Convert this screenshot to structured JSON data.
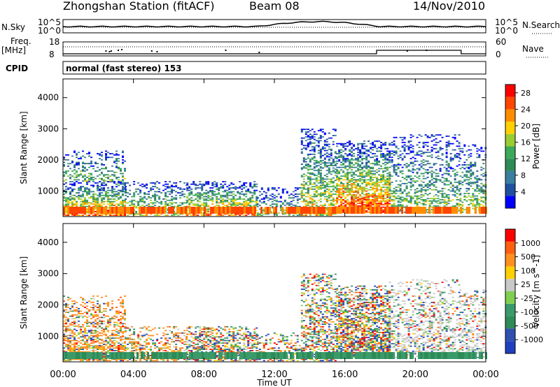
{
  "header": {
    "station": "Zhongshan Station (fitACF)",
    "beam": "Beam 08",
    "date": "14/Nov/2010"
  },
  "panels": {
    "noise": {
      "left_label": "N.Sky",
      "right_label": "N.Search",
      "ticks_left": [
        "10^5",
        "10^0"
      ],
      "ticks_right": [
        "10^5",
        "10^0"
      ]
    },
    "freq": {
      "left_label_top": "Freq.",
      "left_label_bottom": "[MHz]",
      "right_label": "Nave",
      "ticks_left": [
        "18",
        "8"
      ],
      "ticks_right": [
        "60",
        "0"
      ]
    },
    "cpid": {
      "label": "CPID",
      "text": "normal (fast stereo) 153"
    }
  },
  "chart_data": [
    {
      "type": "heatmap",
      "title": "",
      "xlabel": "Time UT",
      "ylabel": "Slant Range [km]",
      "x_ticks": [
        "00:00",
        "04:00",
        "08:00",
        "12:00",
        "16:00",
        "20:00",
        "00:00"
      ],
      "xlim_hours": [
        0,
        24
      ],
      "ylim_km": [
        180,
        4600
      ],
      "y_ticks": [
        1000,
        2000,
        3000,
        4000
      ],
      "colorbar": {
        "label": "Power [dB]",
        "ticks": [
          4,
          8,
          12,
          16,
          20,
          24,
          28
        ],
        "range": [
          0,
          30
        ],
        "colors": [
          "#0000ff",
          "#2050a0",
          "#3a7fa0",
          "#2e8b57",
          "#3caa5a",
          "#9acd32",
          "#ffd000",
          "#ff8c00",
          "#ff4500",
          "#ff0000"
        ]
      },
      "echo_regions": [
        {
          "t0": 0.0,
          "t1": 3.5,
          "r0": 200,
          "r1": 1300,
          "level": 0.8
        },
        {
          "t0": 0.0,
          "t1": 3.5,
          "r0": 1300,
          "r1": 2300,
          "level": 0.4
        },
        {
          "t0": 3.5,
          "t1": 7.0,
          "r0": 200,
          "r1": 1300,
          "level": 0.55
        },
        {
          "t0": 7.0,
          "t1": 11.0,
          "r0": 200,
          "r1": 1300,
          "level": 0.75
        },
        {
          "t0": 11.0,
          "t1": 13.5,
          "r0": 200,
          "r1": 1100,
          "level": 0.4
        },
        {
          "t0": 13.5,
          "t1": 15.5,
          "r0": 200,
          "r1": 3000,
          "level": 0.6
        },
        {
          "t0": 15.5,
          "t1": 18.5,
          "r0": 300,
          "r1": 2600,
          "level": 0.85
        },
        {
          "t0": 18.5,
          "t1": 22.5,
          "r0": 300,
          "r1": 2800,
          "level": 0.45
        },
        {
          "t0": 22.5,
          "t1": 24.0,
          "r0": 300,
          "r1": 2500,
          "level": 0.5
        }
      ]
    },
    {
      "type": "heatmap",
      "title": "",
      "xlabel": "Time UT",
      "ylabel": "Slant Range [km]",
      "x_ticks": [
        "00:00",
        "04:00",
        "08:00",
        "12:00",
        "16:00",
        "20:00",
        "00:00"
      ],
      "xlim_hours": [
        0,
        24
      ],
      "ylim_km": [
        180,
        4600
      ],
      "y_ticks": [
        1000,
        2000,
        3000,
        4000
      ],
      "colorbar": {
        "label": "Velocity [m s^-1]",
        "ticks": [
          1000,
          500,
          100,
          25,
          -25,
          -100,
          -500,
          -1000
        ],
        "colors": [
          "#2040c0",
          "#3050b0",
          "#2e8b57",
          "#3a9a6a",
          "#7fd050",
          "#c8c8c8",
          "#ffd000",
          "#ff9020",
          "#ff6010",
          "#ff0000"
        ]
      }
    }
  ]
}
